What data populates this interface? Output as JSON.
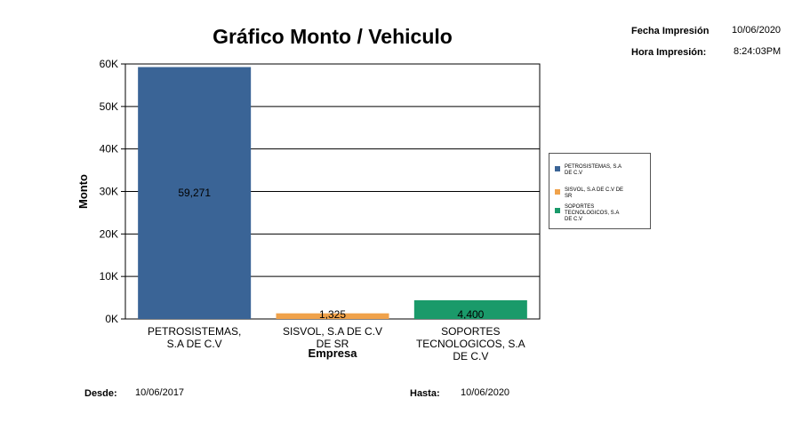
{
  "header": {
    "fecha_label": "Fecha Impresión",
    "fecha_value": "10/06/2020",
    "hora_label": "Hora Impresión:",
    "hora_value": "8:24:03PM"
  },
  "footer": {
    "desde_label": "Desde:",
    "desde_value": "10/06/2017",
    "hasta_label": "Hasta:",
    "hasta_value": "10/06/2020"
  },
  "chart_data": {
    "type": "bar",
    "title": "Gráfico Monto / Vehiculo",
    "xlabel": "Empresa",
    "ylabel": "Monto",
    "ylim": [
      0,
      60000
    ],
    "yticks": [
      "0K",
      "10K",
      "20K",
      "30K",
      "40K",
      "50K",
      "60K"
    ],
    "grid": true,
    "legend_position": "right",
    "categories": [
      "PETROSISTEMAS, S.A DE C.V",
      "SISVOL, S.A DE C.V DE SR",
      "SOPORTES TECNOLOGICOS, S.A DE C.V"
    ],
    "category_label_lines": [
      [
        "PETROSISTEMAS,",
        "S.A DE C.V"
      ],
      [
        "SISVOL, S.A DE C.V",
        "DE SR"
      ],
      [
        "SOPORTES",
        "TECNOLOGICOS, S.A",
        "DE C.V"
      ]
    ],
    "legend_label_lines": [
      [
        "PETROSISTEMAS, S.A",
        "DE C.V"
      ],
      [
        "SISVOL, S.A DE C.V DE",
        "SR"
      ],
      [
        "SOPORTES",
        "TECNOLOGICOS, S.A",
        "DE C.V"
      ]
    ],
    "values": [
      59271,
      1325,
      4400
    ],
    "data_labels": [
      "59,271",
      "1,325",
      "4,400"
    ],
    "colors": [
      "#3a6496",
      "#f0a24a",
      "#1a9a6a"
    ]
  }
}
